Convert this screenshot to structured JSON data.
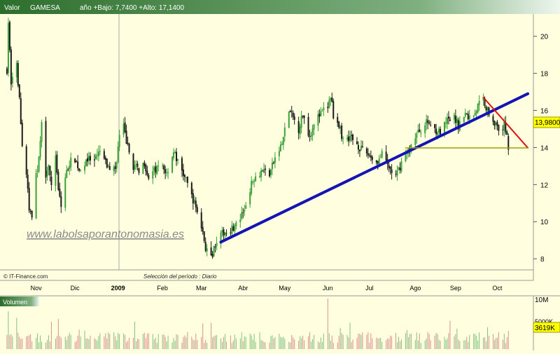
{
  "header": {
    "label": "Valor",
    "symbol": "GAMESA",
    "range_text": "año +Bajo: 7,7400 +Alto: 17,1400"
  },
  "watermark": "www.labolsaporantonomasia.es",
  "source": "© IT-Finance.com",
  "period_text": "Selección del período : Diario",
  "price_tag": "13,9800",
  "volume_panel": {
    "label": "Volumen",
    "tick_labels": [
      "10M",
      "5000K"
    ],
    "current_tag": "3619K"
  },
  "chart_data": {
    "type": "candlestick",
    "title": "GAMESA",
    "ylim": [
      7.4,
      21.2
    ],
    "y_ticks": [
      8,
      10,
      12,
      14,
      16,
      18,
      20
    ],
    "x_ticks": [
      "Nov",
      "Dic",
      "2009",
      "Feb",
      "Mar",
      "Abr",
      "May",
      "Jun",
      "Jul",
      "Ago",
      "Sep",
      "Oct"
    ],
    "grid": false,
    "low": 7.74,
    "high": 17.14,
    "last": 13.98,
    "price_path": [
      [
        "2008-10-13",
        18.2
      ],
      [
        "2008-10-14",
        20.8
      ],
      [
        "2008-10-16",
        17.6
      ],
      [
        "2008-10-20",
        18.4
      ],
      [
        "2008-10-22",
        16.6
      ],
      [
        "2008-10-24",
        14.0
      ],
      [
        "2008-10-27",
        12.6
      ],
      [
        "2008-10-29",
        10.6
      ],
      [
        "2008-10-31",
        10.4
      ],
      [
        "2008-11-03",
        12.4
      ],
      [
        "2008-11-05",
        13.4
      ],
      [
        "2008-11-07",
        15.2
      ],
      [
        "2008-11-10",
        12.6
      ],
      [
        "2008-11-12",
        13.2
      ],
      [
        "2008-11-14",
        11.8
      ],
      [
        "2008-11-17",
        13.6
      ],
      [
        "2008-11-19",
        11.8
      ],
      [
        "2008-11-21",
        10.8
      ],
      [
        "2008-11-24",
        12.4
      ],
      [
        "2008-11-27",
        13.2
      ],
      [
        "2008-12-01",
        13.4
      ],
      [
        "2008-12-05",
        12.6
      ],
      [
        "2008-12-09",
        13.4
      ],
      [
        "2008-12-15",
        13.2
      ],
      [
        "2008-12-19",
        13.8
      ],
      [
        "2008-12-24",
        13.0
      ],
      [
        "2008-12-30",
        12.8
      ],
      [
        "2009-01-02",
        14.6
      ],
      [
        "2009-01-05",
        15.1
      ],
      [
        "2009-01-08",
        14.0
      ],
      [
        "2009-01-12",
        13.0
      ],
      [
        "2009-01-16",
        12.8
      ],
      [
        "2009-01-20",
        13.2
      ],
      [
        "2009-01-23",
        12.4
      ],
      [
        "2009-01-28",
        12.8
      ],
      [
        "2009-02-02",
        13.0
      ],
      [
        "2009-02-05",
        12.6
      ],
      [
        "2009-02-10",
        13.8
      ],
      [
        "2009-02-13",
        13.2
      ],
      [
        "2009-02-18",
        12.4
      ],
      [
        "2009-02-23",
        11.4
      ],
      [
        "2009-02-27",
        10.6
      ],
      [
        "2009-03-03",
        9.4
      ],
      [
        "2009-03-05",
        8.6
      ],
      [
        "2009-03-09",
        8.0
      ],
      [
        "2009-03-11",
        8.6
      ],
      [
        "2009-03-13",
        9.0
      ],
      [
        "2009-03-18",
        9.4
      ],
      [
        "2009-03-23",
        9.6
      ],
      [
        "2009-03-27",
        9.8
      ],
      [
        "2009-04-01",
        10.4
      ],
      [
        "2009-04-06",
        11.8
      ],
      [
        "2009-04-09",
        12.4
      ],
      [
        "2009-04-15",
        12.8
      ],
      [
        "2009-04-20",
        12.6
      ],
      [
        "2009-04-24",
        13.4
      ],
      [
        "2009-04-29",
        14.2
      ],
      [
        "2009-05-04",
        16.0
      ],
      [
        "2009-05-07",
        15.6
      ],
      [
        "2009-05-11",
        15.0
      ],
      [
        "2009-05-14",
        15.8
      ],
      [
        "2009-05-19",
        14.6
      ],
      [
        "2009-05-22",
        15.4
      ],
      [
        "2009-05-27",
        15.8
      ],
      [
        "2009-06-01",
        16.2
      ],
      [
        "2009-06-03",
        16.8
      ],
      [
        "2009-06-05",
        15.8
      ],
      [
        "2009-06-09",
        15.2
      ],
      [
        "2009-06-12",
        14.4
      ],
      [
        "2009-06-17",
        14.6
      ],
      [
        "2009-06-22",
        14.2
      ],
      [
        "2009-06-26",
        13.8
      ],
      [
        "2009-07-01",
        13.6
      ],
      [
        "2009-07-06",
        13.2
      ],
      [
        "2009-07-10",
        13.6
      ],
      [
        "2009-07-15",
        12.9
      ],
      [
        "2009-07-20",
        12.4
      ],
      [
        "2009-07-24",
        13.2
      ],
      [
        "2009-07-29",
        13.8
      ],
      [
        "2009-08-03",
        14.6
      ],
      [
        "2009-08-07",
        15.0
      ],
      [
        "2009-08-12",
        15.4
      ],
      [
        "2009-08-17",
        15.0
      ],
      [
        "2009-08-21",
        14.8
      ],
      [
        "2009-08-26",
        15.4
      ],
      [
        "2009-08-31",
        15.6
      ],
      [
        "2009-09-03",
        15.2
      ],
      [
        "2009-09-08",
        15.8
      ],
      [
        "2009-09-11",
        15.6
      ],
      [
        "2009-09-15",
        15.9
      ],
      [
        "2009-09-18",
        16.4
      ],
      [
        "2009-09-21",
        16.6
      ],
      [
        "2009-09-24",
        16.0
      ],
      [
        "2009-09-29",
        15.4
      ],
      [
        "2009-10-02",
        14.8
      ],
      [
        "2009-10-06",
        15.2
      ],
      [
        "2009-10-08",
        14.8
      ],
      [
        "2009-10-09",
        13.98
      ]
    ],
    "volume": {
      "ylim": [
        0,
        10000000
      ],
      "unit": "shares",
      "peaks": [
        [
          "2008-10-14",
          7500000
        ],
        [
          "2008-10-20",
          6200000
        ],
        [
          "2009-03-09",
          5200000
        ],
        [
          "2009-06-01",
          10000000
        ],
        [
          "2009-10-09",
          3619000
        ]
      ]
    },
    "annotations": [
      {
        "name": "uptrend-line",
        "color": "#1414b4",
        "from": [
          "2009-03-16",
          8.9
        ],
        "to": [
          "2009-10-23",
          16.9
        ]
      },
      {
        "name": "downtrend-line",
        "color": "#e01010",
        "from": [
          "2009-09-21",
          16.7
        ],
        "to": [
          "2009-10-23",
          13.98
        ]
      },
      {
        "name": "support-line",
        "color": "#a0a000",
        "from": [
          "2009-07-27",
          13.98
        ],
        "to": [
          "2009-10-23",
          13.98
        ]
      }
    ]
  },
  "colors": {
    "header_dark": "#2c6e2c",
    "header_light": "#e8f4e8",
    "up_candle": "#3aa03a",
    "down_candle": "#1a1a1a",
    "volume_bar": "#d89090",
    "volume_bar_alt": "#80c080",
    "price_tag_bg": "#ffff00"
  }
}
